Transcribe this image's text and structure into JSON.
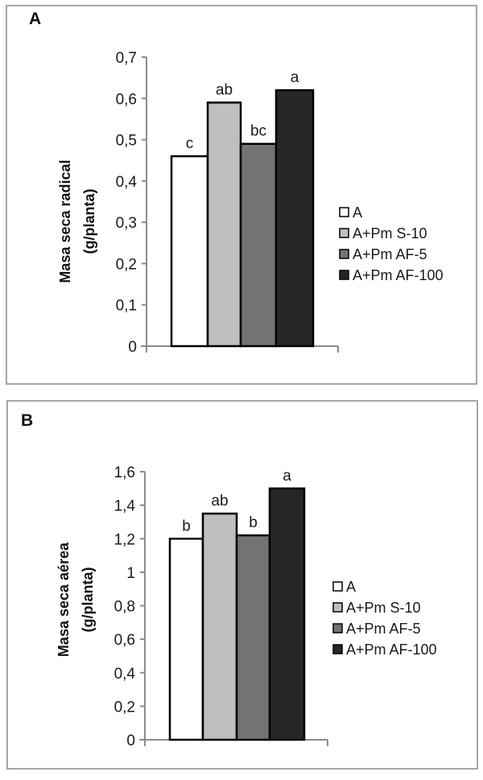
{
  "chart_data": [
    {
      "type": "bar",
      "panel_label": "A",
      "title": "",
      "xlabel": "",
      "ylabel_lines": [
        "Masa seca radical",
        "(g/planta)"
      ],
      "ylim": [
        0,
        0.7
      ],
      "yticks": [
        0,
        0.1,
        0.2,
        0.3,
        0.4,
        0.5,
        0.6,
        0.7
      ],
      "ytick_labels": [
        "0",
        "0,1",
        "0,2",
        "0,3",
        "0,4",
        "0,5",
        "0,6",
        "0,7"
      ],
      "categories": [
        "A",
        "A+Pm S-10",
        "A+Pm AF-5",
        "A+Pm AF-100"
      ],
      "values": [
        0.46,
        0.59,
        0.49,
        0.62
      ],
      "annotations": [
        "c",
        "ab",
        "bc",
        "a"
      ],
      "colors": [
        "#ffffff",
        "#bfbfbf",
        "#737373",
        "#262626"
      ],
      "grid": false,
      "legend_position": "right"
    },
    {
      "type": "bar",
      "panel_label": "B",
      "title": "",
      "xlabel": "",
      "ylabel_lines": [
        "Masa seca aérea",
        "(g/planta)"
      ],
      "ylim": [
        0,
        1.6
      ],
      "yticks": [
        0,
        0.2,
        0.4,
        0.6,
        0.8,
        1.0,
        1.2,
        1.4,
        1.6
      ],
      "ytick_labels": [
        "0",
        "0,2",
        "0,4",
        "0,6",
        "0,8",
        "1",
        "1,2",
        "1,4",
        "1,6"
      ],
      "categories": [
        "A",
        "A+Pm S-10",
        "A+Pm AF-5",
        "A+Pm AF-100"
      ],
      "values": [
        1.2,
        1.35,
        1.22,
        1.5
      ],
      "annotations": [
        "b",
        "ab",
        "b",
        "a"
      ],
      "colors": [
        "#ffffff",
        "#bfbfbf",
        "#737373",
        "#262626"
      ],
      "grid": false,
      "legend_position": "right"
    }
  ]
}
